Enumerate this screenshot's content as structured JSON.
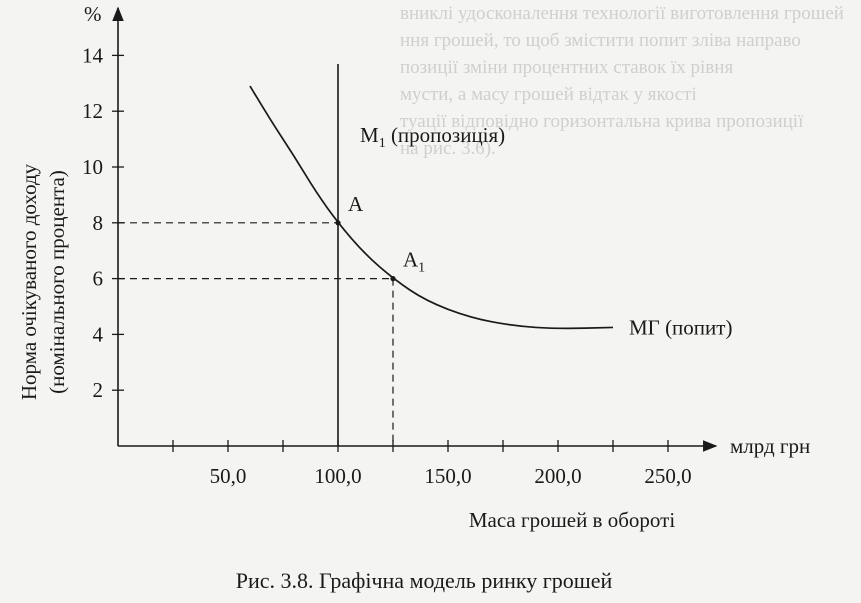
{
  "bleed_text": [
    "вниклі удосконалення технології виготовлення грошей",
    "ння грошей, то щоб змістити попит зліва направо",
    "позиції зміни процентних ставок їх рівня",
    "мусти, а масу грошей відтак у якості",
    "туації відповідно горизонтальна крива пропозиції",
    "на рис. 3.6)."
  ],
  "chart_data": {
    "type": "line",
    "x_ticks": [
      50,
      100,
      150,
      200,
      250
    ],
    "x_tick_labels": [
      "50,0",
      "100,0",
      "150,0",
      "200,0",
      "250,0"
    ],
    "y_ticks": [
      2,
      4,
      6,
      8,
      10,
      12,
      14
    ],
    "y_tick_labels": [
      "2",
      "4",
      "6",
      "8",
      "10",
      "12",
      "14"
    ],
    "xlim": [
      0,
      270
    ],
    "ylim": [
      0,
      15.5
    ],
    "y_unit": "%",
    "x_unit": "млрд грн",
    "ylabel_line1": "Норма очікуваного доходу",
    "ylabel_line2": "(номінального процента)",
    "xlabel": "Маса грошей в обороті",
    "caption": "Рис. 3.8. Графічна модель ринку грошей",
    "series": [
      {
        "name": "МГ (попит)",
        "points": [
          [
            60,
            12.9
          ],
          [
            70,
            11.6
          ],
          [
            80,
            10.4
          ],
          [
            90,
            9.1
          ],
          [
            100,
            8.0
          ],
          [
            112,
            6.9
          ],
          [
            125,
            6.0
          ],
          [
            140,
            5.2
          ],
          [
            160,
            4.6
          ],
          [
            180,
            4.3
          ],
          [
            200,
            4.2
          ],
          [
            225,
            4.25
          ]
        ]
      }
    ],
    "supply_line": {
      "name_main": "М",
      "name_sub": "1",
      "name_rest": " (пропозиція)",
      "x": 100
    },
    "points": [
      {
        "label_main": "A",
        "label_sub": "",
        "x": 100,
        "y": 8
      },
      {
        "label_main": "A",
        "label_sub": "1",
        "x": 125,
        "y": 6
      }
    ]
  }
}
